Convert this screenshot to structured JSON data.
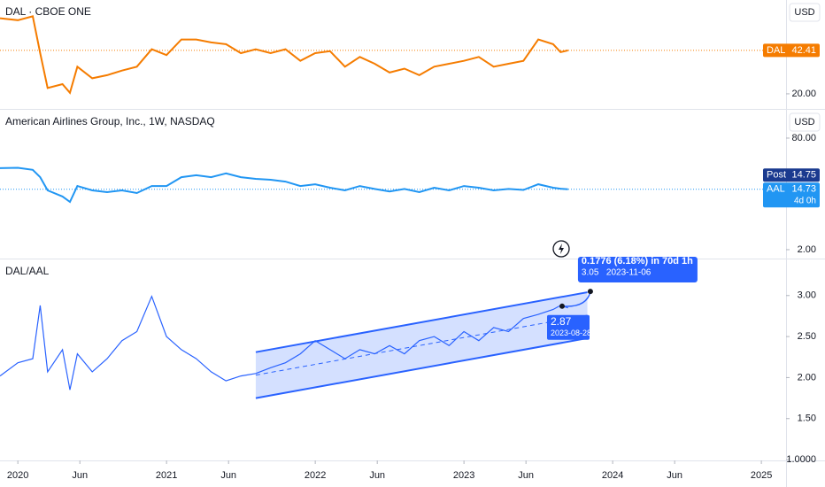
{
  "chart_data": [
    {
      "type": "line",
      "title": "DAL · CBOE ONE",
      "currency": "USD",
      "log": false,
      "x": [
        2019.88,
        2020.0,
        2020.1,
        2020.15,
        2020.2,
        2020.3,
        2020.35,
        2020.4,
        2020.5,
        2020.6,
        2020.7,
        2020.8,
        2020.9,
        2021.0,
        2021.1,
        2021.2,
        2021.3,
        2021.4,
        2021.5,
        2021.6,
        2021.7,
        2021.8,
        2021.9,
        2022.0,
        2022.1,
        2022.2,
        2022.3,
        2022.4,
        2022.5,
        2022.6,
        2022.7,
        2022.8,
        2022.9,
        2023.0,
        2023.1,
        2023.2,
        2023.3,
        2023.4,
        2023.5,
        2023.6,
        2023.65,
        2023.7
      ],
      "series": [
        {
          "name": "DAL",
          "color": "#f57c00",
          "values": [
            59,
            58,
            60,
            41,
            23,
            25,
            20.5,
            34,
            28,
            29.6,
            32,
            34,
            43,
            40,
            48,
            48,
            46.5,
            45.6,
            41,
            43,
            41,
            43,
            37,
            41,
            42,
            34,
            39,
            35.5,
            31,
            33,
            29.6,
            34,
            35.5,
            37,
            39,
            34,
            35.5,
            37,
            48,
            45.6,
            41.5,
            42.41
          ]
        }
      ],
      "xlim": [
        2019.88,
        2025.166
      ],
      "ylim": [
        12.2,
        68.4
      ],
      "yticks": [
        {
          "value": 20,
          "label": "20.00"
        }
      ],
      "tags": [
        {
          "name": "DAL",
          "value": 42.41,
          "color": "#f57c00"
        }
      ]
    },
    {
      "type": "line",
      "title": "American Airlines Group, Inc., 1W, NASDAQ",
      "currency": "USD",
      "log": true,
      "x": [
        2019.88,
        2020.0,
        2020.1,
        2020.15,
        2020.2,
        2020.3,
        2020.35,
        2020.4,
        2020.5,
        2020.6,
        2020.7,
        2020.8,
        2020.9,
        2021.0,
        2021.1,
        2021.2,
        2021.3,
        2021.4,
        2021.5,
        2021.6,
        2021.7,
        2021.8,
        2021.9,
        2022.0,
        2022.1,
        2022.2,
        2022.3,
        2022.4,
        2022.5,
        2022.6,
        2022.7,
        2022.8,
        2022.9,
        2023.0,
        2023.1,
        2023.2,
        2023.3,
        2023.4,
        2023.5,
        2023.6,
        2023.65,
        2023.7
      ],
      "series": [
        {
          "name": "AAL",
          "color": "#2196f3",
          "values": [
            29.6,
            30,
            28,
            22,
            14.2,
            11.6,
            9.7,
            16.4,
            14.2,
            13.4,
            14.2,
            13,
            16.4,
            16.4,
            22,
            23.4,
            22,
            24.9,
            22,
            20.8,
            20.2,
            19,
            16.4,
            17.4,
            15.5,
            14.2,
            16.4,
            14.9,
            13.7,
            14.9,
            13.4,
            15.5,
            14.2,
            16.4,
            15.5,
            14.2,
            14.9,
            14.4,
            17.4,
            15.5,
            15,
            14.73
          ]
        }
      ],
      "xlim": [
        2019.88,
        2025.166
      ],
      "ylim": [
        1.49,
        204
      ],
      "yticks": [
        {
          "value": 80,
          "label": "80.00"
        },
        {
          "value": 2,
          "label": "2.00"
        }
      ],
      "tags": [
        {
          "name": "Post",
          "value": 14.75,
          "color": "#1a3a8f"
        },
        {
          "name": "AAL",
          "value": 14.73,
          "color": "#2196f3",
          "countdown": "4d 0h"
        }
      ]
    },
    {
      "type": "line",
      "title": "DAL/AAL",
      "log": false,
      "x": [
        2019.88,
        2020.0,
        2020.1,
        2020.15,
        2020.2,
        2020.3,
        2020.35,
        2020.4,
        2020.5,
        2020.6,
        2020.7,
        2020.8,
        2020.9,
        2021.0,
        2021.1,
        2021.2,
        2021.3,
        2021.4,
        2021.5,
        2021.6,
        2021.7,
        2021.8,
        2021.9,
        2022.0,
        2022.1,
        2022.2,
        2022.3,
        2022.4,
        2022.5,
        2022.6,
        2022.7,
        2022.8,
        2022.9,
        2023.0,
        2023.1,
        2023.2,
        2023.3,
        2023.4,
        2023.5,
        2023.6,
        2023.65,
        2023.7
      ],
      "series": [
        {
          "name": "DAL/AAL",
          "color": "#2962ff",
          "values": [
            2.02,
            2.18,
            2.23,
            2.88,
            2.07,
            2.34,
            1.85,
            2.29,
            2.07,
            2.23,
            2.45,
            2.56,
            2.99,
            2.5,
            2.34,
            2.23,
            2.07,
            1.96,
            2.02,
            2.05,
            2.12,
            2.18,
            2.29,
            2.45,
            2.34,
            2.23,
            2.34,
            2.29,
            2.39,
            2.29,
            2.45,
            2.5,
            2.39,
            2.56,
            2.45,
            2.61,
            2.56,
            2.72,
            2.77,
            2.83,
            2.88,
            2.85
          ]
        }
      ],
      "xlim": [
        2019.88,
        2025.166
      ],
      "ylim": [
        0.99,
        3.44
      ],
      "yticks": [
        {
          "value": 3,
          "label": "3.00"
        },
        {
          "value": 2.5,
          "label": "2.50"
        },
        {
          "value": 2,
          "label": "2.00"
        },
        {
          "value": 1.5,
          "label": "1.50"
        },
        {
          "value": 1,
          "label": "1.0000"
        }
      ],
      "xticks": [
        2020,
        {
          "value": 2020.417,
          "label": "Jun"
        },
        2021,
        {
          "value": 2021.417,
          "label": "Jun"
        },
        2022,
        {
          "value": 2022.417,
          "label": "Jun"
        },
        2023,
        {
          "value": 2023.417,
          "label": "Jun"
        },
        2024,
        {
          "value": 2024.417,
          "label": "Jun"
        },
        2025
      ],
      "channel": {
        "x": [
          2021.6,
          2023.83
        ],
        "upper": [
          2.31,
          3.04
        ],
        "lower": [
          1.75,
          2.48
        ]
      },
      "measure": {
        "text": "0.1776 (6.18%) in 70d 1h",
        "start": {
          "x": 2023.66,
          "value": 2.87,
          "date": "2023-08-28"
        },
        "end": {
          "x": 2023.85,
          "value": 3.05,
          "date": "2023-11-06"
        }
      }
    }
  ]
}
